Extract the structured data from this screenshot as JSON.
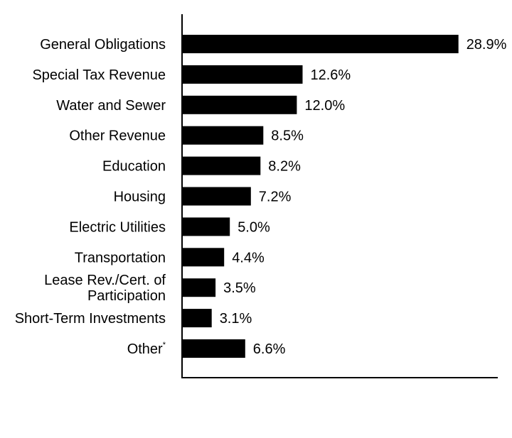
{
  "chart_data": {
    "type": "bar",
    "orientation": "horizontal",
    "categories": [
      [
        "General Obligations"
      ],
      [
        "Special Tax Revenue"
      ],
      [
        "Water and Sewer"
      ],
      [
        "Other Revenue"
      ],
      [
        "Education"
      ],
      [
        "Housing"
      ],
      [
        "Electric Utilities"
      ],
      [
        "Transportation"
      ],
      [
        "Lease Rev./Cert. of",
        "Participation"
      ],
      [
        "Short-Term Investments"
      ],
      [
        "Other"
      ]
    ],
    "category_footnotes": [
      "",
      "",
      "",
      "",
      "",
      "",
      "",
      "",
      "",
      "",
      "*"
    ],
    "values": [
      28.9,
      12.6,
      12.0,
      8.5,
      8.2,
      7.2,
      5.0,
      4.4,
      3.5,
      3.1,
      6.6
    ],
    "value_labels": [
      "28.9%",
      "12.6%",
      "12.0%",
      "8.5%",
      "8.2%",
      "7.2%",
      "5.0%",
      "4.4%",
      "3.5%",
      "3.1%",
      "6.6%"
    ],
    "xlim": [
      0,
      34.5
    ],
    "bar_color": "#000000",
    "grid": false,
    "title": "",
    "xlabel": "",
    "ylabel": ""
  }
}
